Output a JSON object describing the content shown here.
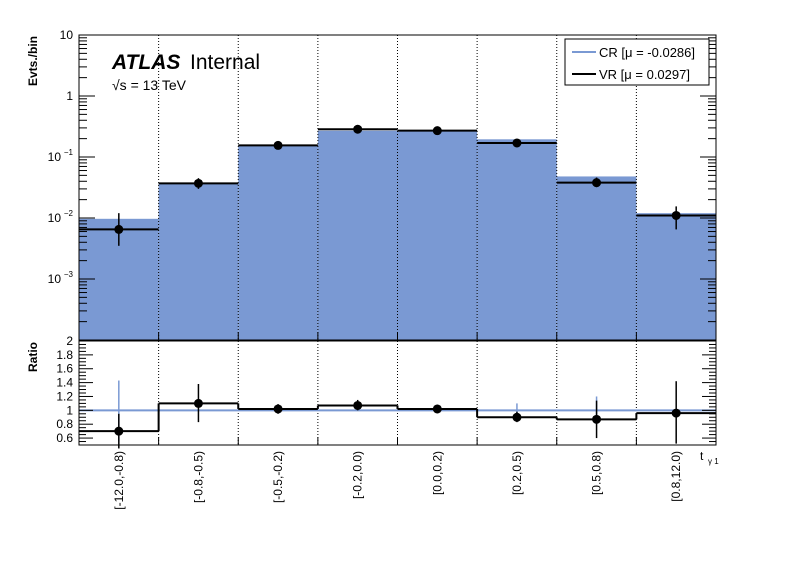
{
  "chart_data": [
    {
      "type": "bar",
      "panel": "main",
      "ylabel": "Evts./bin",
      "yscale": "log",
      "ylim": [
        0.0001,
        10
      ],
      "yticks": [
        {
          "label": "10",
          "sup": ""
        },
        {
          "label": "1",
          "sup": ""
        },
        {
          "label": "10",
          "sup": "−1"
        },
        {
          "label": "10",
          "sup": "−2"
        },
        {
          "label": "10",
          "sup": "−3"
        }
      ],
      "categories": [
        "[-12.0,-0.8)",
        "[-0.8,-0.5)",
        "[-0.5,-0.2)",
        "[-0.2,0.0)",
        "[0.0,0.2)",
        "[0.2,0.5)",
        "[0.5,0.8)",
        "[0.8,12.0)"
      ],
      "series": [
        {
          "name": "CR [μ = -0.0286]",
          "color": "#7a99d3",
          "values": [
            0.0097,
            0.037,
            0.155,
            0.27,
            0.27,
            0.195,
            0.048,
            0.012
          ]
        },
        {
          "name": "VR [μ = 0.0297]",
          "color": "#000000",
          "values": [
            0.0065,
            0.037,
            0.155,
            0.285,
            0.27,
            0.17,
            0.038,
            0.011
          ],
          "err_low": [
            0.0035,
            0.03,
            0.14,
            0.265,
            0.25,
            0.15,
            0.032,
            0.0065
          ],
          "err_high": [
            0.012,
            0.045,
            0.17,
            0.305,
            0.29,
            0.19,
            0.046,
            0.0155
          ]
        }
      ]
    },
    {
      "type": "line",
      "panel": "ratio",
      "ylabel": "Ratio",
      "ylim": [
        0.5,
        2.0
      ],
      "yticks": [
        "2",
        "1.8",
        "1.6",
        "1.4",
        "1.2",
        "1",
        "0.8",
        "0.6"
      ],
      "xlabel": "t",
      "xlabel_sub": "γ 1",
      "categories": [
        "[-12.0,-0.8)",
        "[-0.8,-0.5)",
        "[-0.5,-0.2)",
        "[-0.2,0.0)",
        "[0.0,0.2)",
        "[0.2,0.5)",
        "[0.5,0.8)",
        "[0.8,12.0)"
      ],
      "series": [
        {
          "name": "CR",
          "color": "#7a99d3",
          "values": [
            1,
            1,
            1,
            1,
            1,
            1,
            1,
            1
          ],
          "err_low": [
            0.55,
            1,
            1,
            1,
            1,
            0.9,
            0.8,
            1
          ],
          "err_high": [
            1.43,
            1,
            1,
            1,
            1,
            1.1,
            1.2,
            1
          ]
        },
        {
          "name": "VR",
          "color": "#000000",
          "values": [
            0.7,
            1.1,
            1.02,
            1.07,
            1.02,
            0.9,
            0.87,
            0.96
          ],
          "err_low": [
            0.45,
            0.83,
            0.95,
            1.0,
            0.96,
            0.83,
            0.6,
            0.52
          ],
          "err_high": [
            0.95,
            1.38,
            1.09,
            1.15,
            1.08,
            0.98,
            1.14,
            1.42
          ]
        }
      ]
    }
  ],
  "labels": {
    "atlas": "ATLAS",
    "internal": "Internal",
    "energy": "√s = 13 TeV",
    "legend_cr": "CR [μ = -0.0286]",
    "legend_vr": "VR [μ = 0.0297]",
    "ylabel_main": "Evts./bin",
    "ylabel_ratio": "Ratio",
    "xlabel": "t",
    "xlabel_sub": "γ 1"
  },
  "colors": {
    "cr": "#7a99d3",
    "vr": "#000000",
    "grid": "#000000"
  }
}
